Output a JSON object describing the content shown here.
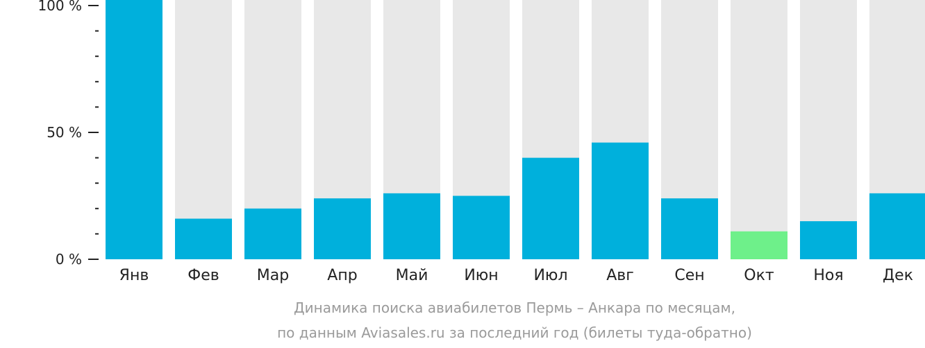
{
  "chart_data": {
    "type": "bar",
    "categories": [
      "Янв",
      "Фев",
      "Мар",
      "Апр",
      "Май",
      "Июн",
      "Июл",
      "Авг",
      "Сен",
      "Окт",
      "Ноя",
      "Дек"
    ],
    "values": [
      100,
      16,
      20,
      24,
      26,
      25,
      40,
      46,
      24,
      11,
      15,
      26
    ],
    "ylim": [
      0,
      100
    ],
    "y_ticks": [
      {
        "value": 0,
        "label": "0 %"
      },
      {
        "value": 50,
        "label": "50 %"
      },
      {
        "value": 100,
        "label": "100 %"
      }
    ],
    "minor_tick_step": 10,
    "highlight_index": 9,
    "colors": {
      "bar": "#00b0dc",
      "highlight": "#6ef08a",
      "background_bar": "#e8e8e8",
      "axis": "#222222"
    },
    "caption_line1": "Динамика поиска авиабилетов Пермь – Анкара по месяцам,",
    "caption_line2": "по данным Aviasales.ru за последний год (билеты туда-обратно)"
  }
}
